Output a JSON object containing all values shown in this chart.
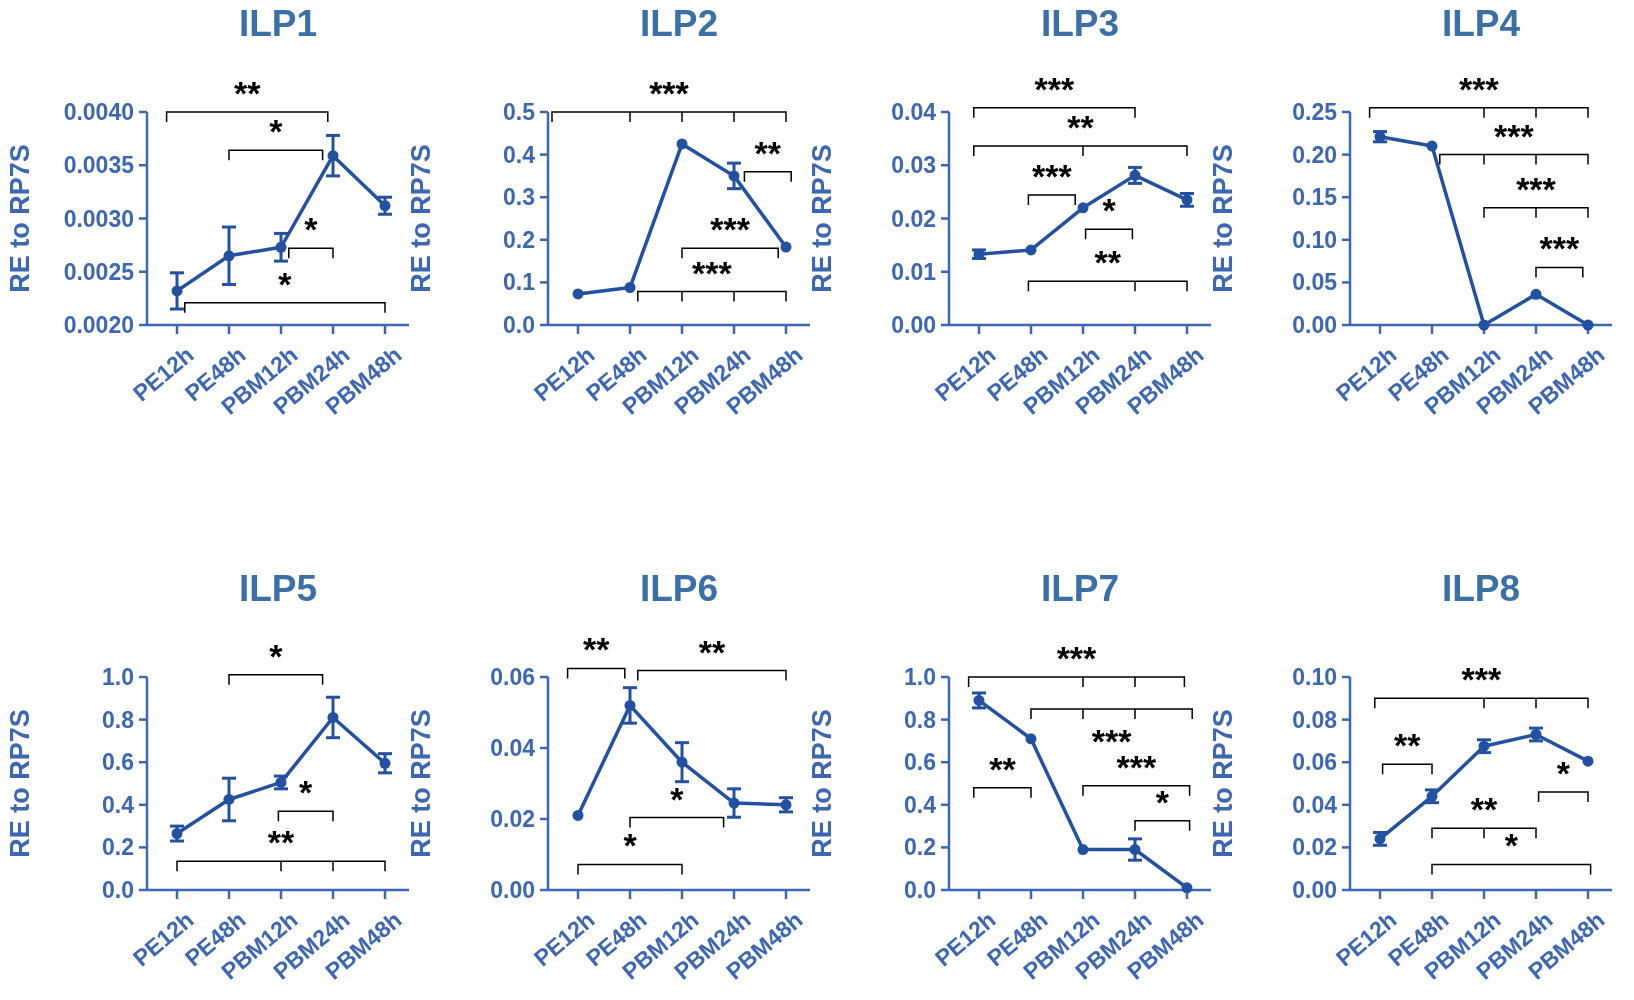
{
  "chart_data": [
    {
      "type": "line",
      "title": "ILP1",
      "ylabel": "RE to RP7S",
      "categories": [
        "PE12h",
        "PE48h",
        "PBM12h",
        "PBM24h",
        "PBM48h"
      ],
      "marker": "circle",
      "line_style": "solid",
      "series": [
        {
          "color": "#2350a0",
          "values": [
            0.00232,
            0.00265,
            0.00273,
            0.00359,
            0.00312
          ],
          "errors": [
            0.00017,
            0.00027,
            0.00013,
            0.00019,
            8e-05
          ]
        }
      ],
      "ylim": [
        0.002,
        0.004
      ],
      "yticks": [
        {
          "value": 0.002,
          "label": "0.0020"
        },
        {
          "value": 0.0025,
          "label": "0.0025"
        },
        {
          "value": 0.003,
          "label": "0.0030"
        },
        {
          "value": 0.0035,
          "label": "0.0035"
        },
        {
          "value": 0.004,
          "label": "0.0040"
        }
      ],
      "annotations": [
        "**",
        "*",
        "*",
        "*"
      ]
    },
    {
      "type": "line",
      "title": "ILP2",
      "ylabel": "RE to RP7S",
      "categories": [
        "PE12h",
        "PE48h",
        "PBM12h",
        "PBM24h",
        "PBM48h"
      ],
      "marker": "circle",
      "line_style": "solid",
      "series": [
        {
          "color": "#2350a0",
          "values": [
            0.073,
            0.088,
            0.425,
            0.35,
            0.183
          ],
          "errors": [
            null,
            null,
            null,
            0.03,
            null
          ]
        }
      ],
      "ylim": [
        0,
        0.5
      ],
      "yticks": [
        {
          "value": 0,
          "label": "0.0"
        },
        0.1,
        0.2,
        0.3,
        0.4,
        0.5
      ],
      "annotations": [
        "***",
        "**",
        "***",
        "***"
      ]
    },
    {
      "type": "line",
      "title": "ILP3",
      "ylabel": "RE to RP7S",
      "categories": [
        "PE12h",
        "PE48h",
        "PBM12h",
        "PBM24h",
        "PBM48h"
      ],
      "marker": "circle",
      "line_style": "solid",
      "series": [
        {
          "color": "#2350a0",
          "values": [
            0.0133,
            0.0141,
            0.022,
            0.0281,
            0.0235
          ],
          "errors": [
            0.0008,
            null,
            null,
            0.0015,
            0.0012
          ]
        }
      ],
      "ylim": [
        0,
        0.04
      ],
      "yticks": [
        {
          "value": 0,
          "label": "0.00"
        },
        0.01,
        0.02,
        0.03,
        0.04
      ],
      "annotations": [
        "***",
        "**",
        "***",
        "*",
        "**"
      ]
    },
    {
      "type": "line",
      "title": "ILP4",
      "ylabel": "RE to RP7S",
      "categories": [
        "PE12h",
        "PE48h",
        "PBM12h",
        "PBM24h",
        "PBM48h"
      ],
      "marker": "circle",
      "line_style": "solid",
      "series": [
        {
          "color": "#2350a0",
          "values": [
            0.221,
            0.21,
            0.0,
            0.036,
            0.0
          ],
          "errors": [
            0.006,
            null,
            null,
            null,
            null
          ]
        }
      ],
      "ylim": [
        0,
        0.25
      ],
      "yticks": [
        {
          "value": 0,
          "label": "0.00"
        },
        0.05,
        {
          "value": 0.1,
          "label": "0.10"
        },
        0.15,
        {
          "value": 0.2,
          "label": "0.20"
        },
        0.25
      ],
      "annotations": [
        "***",
        "***",
        "***",
        "***"
      ]
    },
    {
      "type": "line",
      "title": "ILP5",
      "ylabel": "RE to RP7S",
      "categories": [
        "PE12h",
        "PE48h",
        "PBM12h",
        "PBM24h",
        "PBM48h"
      ],
      "marker": "circle",
      "line_style": "solid",
      "series": [
        {
          "color": "#2350a0",
          "values": [
            0.265,
            0.425,
            0.505,
            0.81,
            0.595
          ],
          "errors": [
            0.035,
            0.1,
            0.03,
            0.095,
            0.045
          ]
        }
      ],
      "ylim": [
        0,
        1
      ],
      "yticks": [
        {
          "value": 0,
          "label": "0.0"
        },
        0.2,
        0.4,
        0.6,
        0.8,
        {
          "value": 1,
          "label": "1.0"
        }
      ],
      "annotations": [
        "*",
        "*",
        "**"
      ]
    },
    {
      "type": "line",
      "title": "ILP6",
      "ylabel": "RE to RP7S",
      "categories": [
        "PE12h",
        "PE48h",
        "PBM12h",
        "PBM24h",
        "PBM48h"
      ],
      "marker": "circle",
      "line_style": "solid",
      "series": [
        {
          "color": "#2350a0",
          "values": [
            0.021,
            0.052,
            0.036,
            0.0245,
            0.024
          ],
          "errors": [
            null,
            0.005,
            0.0055,
            0.004,
            0.002
          ]
        }
      ],
      "ylim": [
        0,
        0.06
      ],
      "yticks": [
        {
          "value": 0,
          "label": "0.00"
        },
        0.02,
        0.04,
        0.06
      ],
      "annotations": [
        "**",
        "**",
        "*",
        "*"
      ]
    },
    {
      "type": "line",
      "title": "ILP7",
      "ylabel": "RE to RP7S",
      "categories": [
        "PE12h",
        "PE48h",
        "PBM12h",
        "PBM24h",
        "PBM48h"
      ],
      "marker": "circle",
      "line_style": "solid",
      "series": [
        {
          "color": "#2350a0",
          "values": [
            0.89,
            0.71,
            0.19,
            0.19,
            0.01
          ],
          "errors": [
            0.035,
            null,
            null,
            0.05,
            null
          ]
        }
      ],
      "ylim": [
        0,
        1
      ],
      "yticks": [
        {
          "value": 0,
          "label": "0.0"
        },
        0.2,
        0.4,
        0.6,
        0.8,
        {
          "value": 1,
          "label": "1.0"
        }
      ],
      "annotations": [
        "***",
        "***",
        "**",
        "***",
        "*"
      ]
    },
    {
      "type": "line",
      "title": "ILP8",
      "ylabel": "RE to RP7S",
      "categories": [
        "PE12h",
        "PE48h",
        "PBM12h",
        "PBM24h",
        "PBM48h"
      ],
      "marker": "circle",
      "line_style": "solid",
      "series": [
        {
          "color": "#2350a0",
          "values": [
            0.024,
            0.044,
            0.0675,
            0.073,
            0.0605
          ],
          "errors": [
            0.003,
            0.003,
            0.003,
            0.003,
            null
          ]
        }
      ],
      "ylim": [
        0,
        0.1
      ],
      "yticks": [
        {
          "value": 0,
          "label": "0.00"
        },
        0.02,
        0.04,
        0.06,
        0.08,
        {
          "value": 0.1,
          "label": "0.10"
        }
      ],
      "annotations": [
        "***",
        "**",
        "*",
        "**",
        "*"
      ]
    }
  ]
}
